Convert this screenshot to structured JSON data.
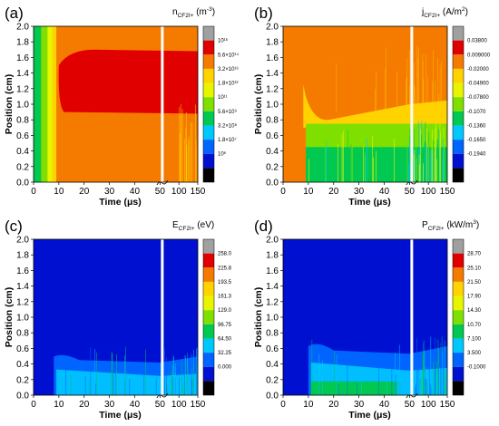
{
  "chart_data": [
    {
      "type": "heatmap",
      "panel_label": "(a)",
      "colorbar_title": {
        "main": "n",
        "sub": "CF2I+",
        "unit": " (m",
        "unit_sup": "-3",
        "close": ")"
      },
      "xlabel": "Time (μs)",
      "ylabel": "Position (cm)",
      "x_ticks": [
        "0",
        "10",
        "20",
        "30",
        "40",
        "50",
        "100",
        "150"
      ],
      "y_ticks": [
        "0.0",
        "0.2",
        "0.4",
        "0.6",
        "0.8",
        "1.0",
        "1.2",
        "1.4",
        "1.6",
        "1.8",
        "2.0"
      ],
      "xlim": [
        0,
        150
      ],
      "ylim": [
        0,
        2.0
      ],
      "x_break_at": 50,
      "colorbar_levels": [
        "10¹⁶",
        "5.6×10¹⁴",
        "3.2×10¹³",
        "1.8×10¹²",
        "10¹¹",
        "5.6×10⁹",
        "3.2×10⁸",
        "1.8×10⁷",
        "10⁶"
      ],
      "colorbar_colors": [
        "#a0a0a0",
        "#e00000",
        "#f57a00",
        "#ffd200",
        "#e8f500",
        "#7fe000",
        "#00c850",
        "#00c8ff",
        "#0064ff",
        "#0010d0",
        "#000000"
      ],
      "regions": [
        {
          "description": "high density core",
          "x": [
            10,
            150
          ],
          "y": [
            0.88,
            1.7
          ],
          "level": "5.6×10¹⁴"
        },
        {
          "description": "bulk plasma",
          "x": [
            10,
            150
          ],
          "y": [
            0,
            2.0
          ],
          "level": "3.2×10¹³"
        },
        {
          "description": "early-time expansion band",
          "x": [
            0,
            9
          ],
          "y": [
            0,
            2.0
          ],
          "level": "10¹¹"
        }
      ]
    },
    {
      "type": "heatmap",
      "panel_label": "(b)",
      "colorbar_title": {
        "main": "j",
        "sub": "CF2I+",
        "unit": " (A/m",
        "unit_sup": "2",
        "close": ")"
      },
      "xlabel": "Time (μs)",
      "ylabel": "Position (cm)",
      "x_ticks": [
        "0",
        "10",
        "20",
        "30",
        "40",
        "50",
        "100",
        "150"
      ],
      "y_ticks": [
        "0.0",
        "0.2",
        "0.4",
        "0.6",
        "0.8",
        "1.0",
        "1.2",
        "1.4",
        "1.6",
        "1.8",
        "2.0"
      ],
      "xlim": [
        0,
        150
      ],
      "ylim": [
        0,
        2.0
      ],
      "x_break_at": 50,
      "colorbar_levels": [
        "0.03800",
        "0.009000",
        "-0.02000",
        "-0.04900",
        "-0.07800",
        "-0.1070",
        "-0.1360",
        "-0.1650",
        "-0.1940"
      ],
      "colorbar_colors": [
        "#a0a0a0",
        "#e00000",
        "#f57a00",
        "#ffd200",
        "#e8f500",
        "#7fe000",
        "#00c850",
        "#00c8ff",
        "#0064ff",
        "#0010d0",
        "#000000"
      ],
      "regions": [
        {
          "description": "near-zero current, upper region",
          "x": [
            0,
            150
          ],
          "y": [
            0.7,
            2.0
          ],
          "level": "-0.02000"
        },
        {
          "description": "negative current region",
          "x": [
            10,
            150
          ],
          "y": [
            0,
            0.75
          ],
          "level": "-0.07800"
        }
      ]
    },
    {
      "type": "heatmap",
      "panel_label": "(c)",
      "colorbar_title": {
        "main": "E",
        "sub": "CF2I+",
        "unit": " (eV)",
        "unit_sup": "",
        "close": ""
      },
      "xlabel": "Time (μs)",
      "ylabel": "Position (cm)",
      "x_ticks": [
        "0",
        "10",
        "20",
        "30",
        "40",
        "50",
        "100",
        "150"
      ],
      "y_ticks": [
        "0.0",
        "0.2",
        "0.4",
        "0.6",
        "0.8",
        "1.0",
        "1.2",
        "1.4",
        "1.6",
        "1.8",
        "2.0"
      ],
      "xlim": [
        0,
        150
      ],
      "ylim": [
        0,
        2.0
      ],
      "x_break_at": 50,
      "colorbar_levels": [
        "258.0",
        "225.8",
        "193.5",
        "161.3",
        "129.0",
        "96.75",
        "64.50",
        "32.25",
        "0.000"
      ],
      "colorbar_colors": [
        "#a0a0a0",
        "#e00000",
        "#f57a00",
        "#ffd200",
        "#e8f500",
        "#7fe000",
        "#00c850",
        "#00c8ff",
        "#0064ff",
        "#0010d0",
        "#000000"
      ],
      "regions": [
        {
          "description": "low energy background",
          "x": [
            0,
            150
          ],
          "y": [
            0,
            2.0
          ],
          "level": "0.000"
        },
        {
          "description": "energetic ions near lower electrode",
          "x": [
            8,
            150
          ],
          "y": [
            0,
            0.55
          ],
          "level": "32.25"
        }
      ]
    },
    {
      "type": "heatmap",
      "panel_label": "(d)",
      "colorbar_title": {
        "main": "P",
        "sub": "CF2I+",
        "unit": " (kW/m",
        "unit_sup": "3",
        "close": ")"
      },
      "xlabel": "Time (μs)",
      "ylabel": "Position (cm)",
      "x_ticks": [
        "0",
        "10",
        "20",
        "30",
        "40",
        "50",
        "100",
        "150"
      ],
      "y_ticks": [
        "0.0",
        "0.2",
        "0.4",
        "0.6",
        "0.8",
        "1.0",
        "1.2",
        "1.4",
        "1.6",
        "1.8",
        "2.0"
      ],
      "xlim": [
        0,
        150
      ],
      "ylim": [
        0,
        2.0
      ],
      "x_break_at": 50,
      "colorbar_levels": [
        "28.70",
        "25.10",
        "21.50",
        "17.90",
        "14.30",
        "10.70",
        "7.100",
        "3.500",
        "-0.1000"
      ],
      "colorbar_colors": [
        "#a0a0a0",
        "#e00000",
        "#f57a00",
        "#ffd200",
        "#e8f500",
        "#7fe000",
        "#00c850",
        "#00c8ff",
        "#0064ff",
        "#0010d0",
        "#000000"
      ],
      "regions": [
        {
          "description": "low power background",
          "x": [
            0,
            150
          ],
          "y": [
            0,
            2.0
          ],
          "level": "-0.1000"
        },
        {
          "description": "power deposition near lower electrode",
          "x": [
            10,
            150
          ],
          "y": [
            0,
            0.7
          ],
          "level": "3.500"
        }
      ]
    }
  ]
}
